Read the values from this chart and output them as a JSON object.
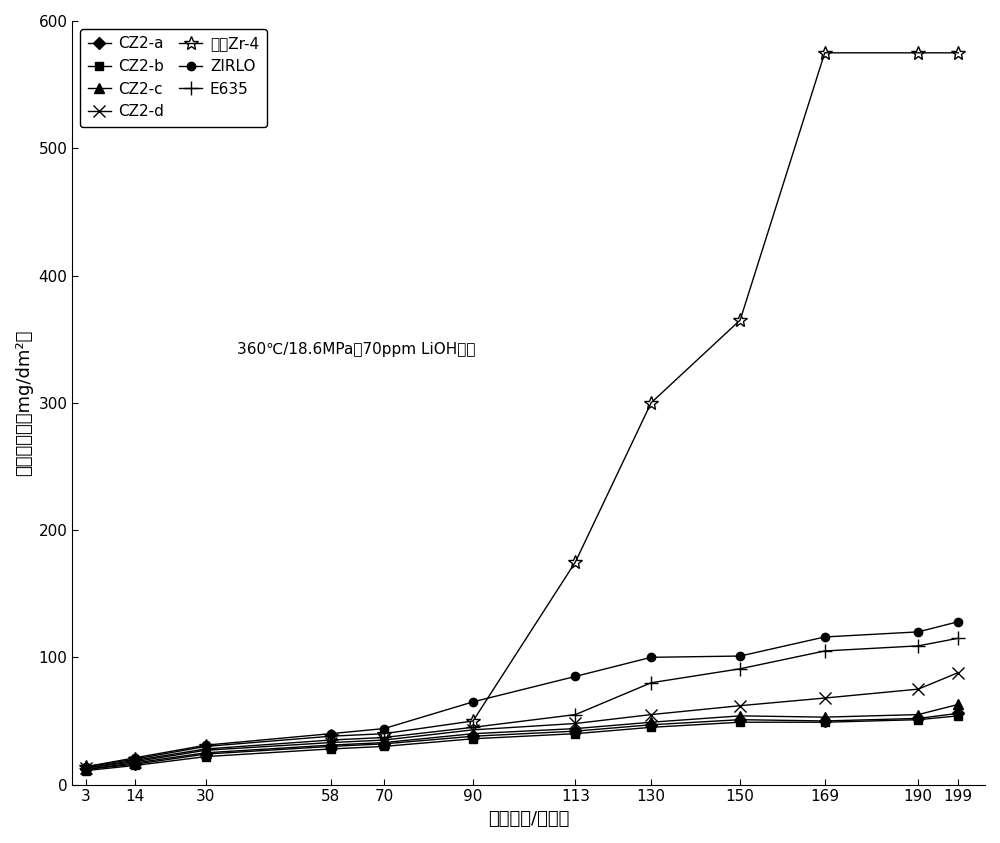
{
  "x_ticks": [
    3,
    14,
    30,
    58,
    70,
    90,
    113,
    130,
    150,
    169,
    190,
    199
  ],
  "series": [
    {
      "label": "CZ2-a",
      "marker": "D",
      "x": [
        3,
        14,
        30,
        58,
        70,
        90,
        113,
        130,
        150,
        169,
        190,
        199
      ],
      "y": [
        12,
        16,
        24,
        30,
        32,
        38,
        42,
        47,
        51,
        50,
        52,
        56
      ]
    },
    {
      "label": "CZ2-b",
      "marker": "s",
      "x": [
        3,
        14,
        30,
        58,
        70,
        90,
        113,
        130,
        150,
        169,
        190,
        199
      ],
      "y": [
        11,
        15,
        22,
        28,
        30,
        36,
        40,
        45,
        49,
        49,
        51,
        54
      ]
    },
    {
      "label": "CZ2-c",
      "marker": "^",
      "x": [
        3,
        14,
        30,
        58,
        70,
        90,
        113,
        130,
        150,
        169,
        190,
        199
      ],
      "y": [
        12,
        17,
        25,
        31,
        33,
        40,
        44,
        49,
        54,
        53,
        55,
        63
      ]
    },
    {
      "label": "CZ2-d",
      "marker": "x",
      "x": [
        3,
        14,
        30,
        58,
        70,
        90,
        113,
        130,
        150,
        169,
        190,
        199
      ],
      "y": [
        13,
        18,
        27,
        33,
        35,
        43,
        48,
        55,
        62,
        68,
        75,
        88
      ]
    },
    {
      "label": "低锡Zr-4",
      "marker": "*",
      "x": [
        3,
        14,
        30,
        58,
        70,
        90,
        113,
        130,
        150,
        169,
        190,
        199
      ],
      "y": [
        14,
        20,
        30,
        38,
        40,
        50,
        175,
        300,
        365,
        575,
        575,
        575
      ]
    },
    {
      "label": "ZIRLO",
      "marker": "o",
      "x": [
        3,
        14,
        30,
        58,
        70,
        90,
        113,
        130,
        150,
        169,
        190,
        199
      ],
      "y": [
        14,
        21,
        31,
        40,
        44,
        65,
        85,
        100,
        101,
        116,
        120,
        128
      ]
    },
    {
      "label": "E635",
      "marker": "+",
      "x": [
        3,
        14,
        30,
        58,
        70,
        90,
        113,
        130,
        150,
        169,
        190,
        199
      ],
      "y": [
        13,
        19,
        28,
        35,
        37,
        45,
        55,
        80,
        91,
        105,
        109,
        115
      ]
    }
  ],
  "xlabel": "腐蚀天数/（天）",
  "ylabel": "腐蚀增重／（mg/dm²）",
  "annotation": "360℃/18.6MPa，70ppm LiOH溶液",
  "ylim": [
    0,
    600
  ],
  "yticks": [
    0,
    100,
    200,
    300,
    400,
    500,
    600
  ],
  "line_color": "#000000",
  "figsize": [
    10.0,
    8.43
  ]
}
